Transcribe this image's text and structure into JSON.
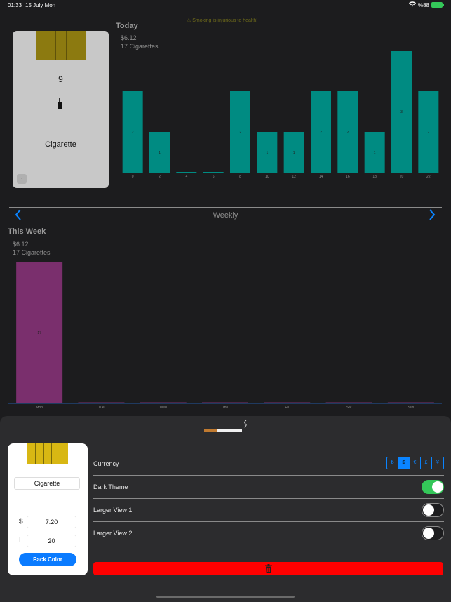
{
  "status": {
    "time": "01:33",
    "date": "15 July Mon",
    "battery": "%88",
    "wifi_icon": "wifi-icon"
  },
  "warning": "⚠ Smoking is injurious to health!",
  "pack": {
    "count": "9",
    "name": "Cigarette",
    "minus": "-"
  },
  "today": {
    "title": "Today",
    "cost": "$6.12",
    "count": "17 Cigarettes"
  },
  "weekly_label": "Weekly",
  "this_week": {
    "title": "This Week",
    "cost": "$6.12",
    "count": "17 Cigarettes"
  },
  "chart_data": [
    {
      "type": "bar",
      "title": "Today",
      "categories": [
        "0",
        "2",
        "4",
        "6",
        "8",
        "10",
        "12",
        "14",
        "16",
        "18",
        "20",
        "22"
      ],
      "values": [
        2,
        1,
        0,
        0,
        2,
        1,
        1,
        2,
        2,
        1,
        3,
        2
      ],
      "ylim": [
        0,
        3
      ],
      "color": "#008b82"
    },
    {
      "type": "bar",
      "title": "This Week",
      "categories": [
        "Mon",
        "Tue",
        "Wed",
        "Thu",
        "Fri",
        "Sat",
        "Sun"
      ],
      "values": [
        17,
        0,
        0,
        0,
        0,
        0,
        0
      ],
      "ylim": [
        0,
        17
      ],
      "color": "#7a2f6d"
    }
  ],
  "editor": {
    "name": "Cigarette",
    "currency_symbol": "$",
    "price": "7.20",
    "count_symbol": "I",
    "count": "20",
    "pack_color_button": "Pack Color"
  },
  "settings": {
    "currency_label": "Currency",
    "currencies": [
      "₺",
      "$",
      "€",
      "£",
      "¥"
    ],
    "selected_currency": "$",
    "dark_theme_label": "Dark Theme",
    "dark_theme": true,
    "larger_view_1_label": "Larger View 1",
    "larger_view_1": false,
    "larger_view_2_label": "Larger View 2",
    "larger_view_2": false
  },
  "delete_icon": "trash-icon"
}
